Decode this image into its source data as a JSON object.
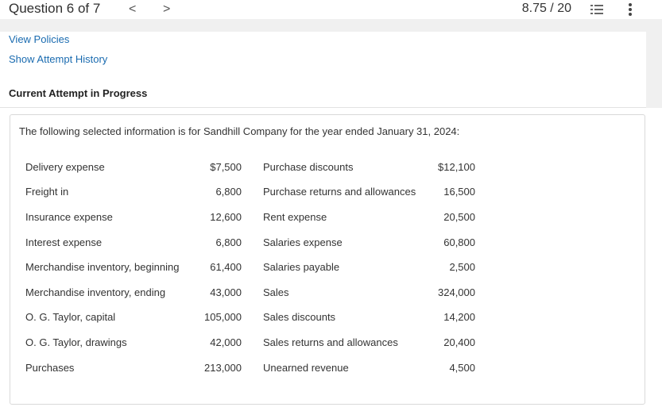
{
  "header": {
    "question_title": "Question 6 of 7",
    "prev_arrow": "<",
    "next_arrow": ">",
    "score": "8.75 / 20",
    "icons": [
      "list-icon",
      "more-vertical-icon"
    ]
  },
  "links": {
    "view_policies": "View Policies",
    "show_attempt_history": "Show Attempt History"
  },
  "attempt_heading": "Current Attempt in Progress",
  "question": {
    "intro": "The following selected information is for Sandhill Company for the year ended January 31, 2024:",
    "left_rows": [
      {
        "label": "Delivery expense",
        "amount": "$7,500"
      },
      {
        "label": "Freight in",
        "amount": "6,800"
      },
      {
        "label": "Insurance expense",
        "amount": "12,600"
      },
      {
        "label": "Interest expense",
        "amount": "6,800"
      },
      {
        "label": "Merchandise inventory, beginning",
        "amount": "61,400"
      },
      {
        "label": "Merchandise inventory, ending",
        "amount": "43,000"
      },
      {
        "label": "O. G. Taylor, capital",
        "amount": "105,000"
      },
      {
        "label": "O. G. Taylor, drawings",
        "amount": "42,000"
      },
      {
        "label": "Purchases",
        "amount": "213,000"
      }
    ],
    "right_rows": [
      {
        "label": "Purchase discounts",
        "amount": "$12,100"
      },
      {
        "label": "Purchase returns and allowances",
        "amount": "16,500"
      },
      {
        "label": "Rent expense",
        "amount": "20,500"
      },
      {
        "label": "Salaries expense",
        "amount": "60,800"
      },
      {
        "label": "Salaries payable",
        "amount": "2,500"
      },
      {
        "label": "Sales",
        "amount": "324,000"
      },
      {
        "label": "Sales discounts",
        "amount": "14,200"
      },
      {
        "label": "Sales returns and allowances",
        "amount": "20,400"
      },
      {
        "label": "Unearned revenue",
        "amount": "4,500"
      }
    ]
  },
  "colors": {
    "link": "#1a6bb0",
    "text": "#333333",
    "border": "#d9d9d9",
    "background_gray": "#f0f0f0"
  }
}
